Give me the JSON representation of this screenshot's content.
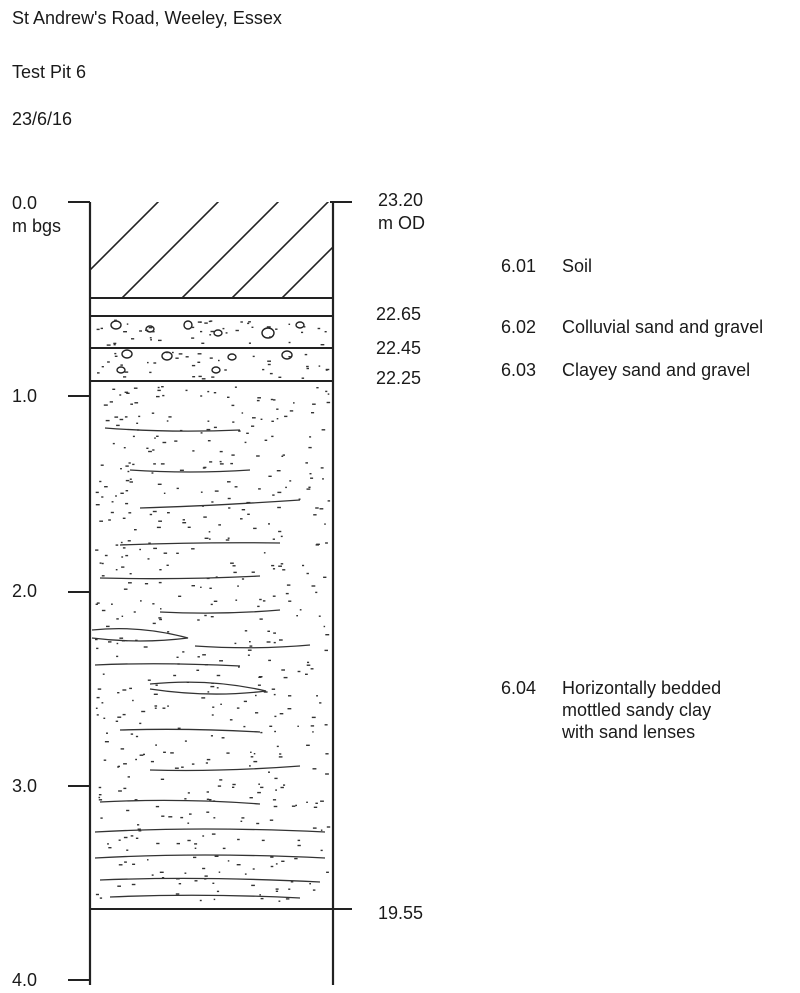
{
  "header": {
    "site": "St Andrew's Road, Weeley, Essex",
    "pit": "Test Pit 6",
    "date": "23/6/16"
  },
  "depth_axis": {
    "unit_label": "m bgs",
    "ticks": [
      "0.0",
      "1.0",
      "2.0",
      "3.0",
      "4.0"
    ]
  },
  "elevation": {
    "unit_label": "m OD",
    "levels": [
      "23.20",
      "22.65",
      "22.45",
      "22.25",
      "19.55"
    ]
  },
  "contexts": [
    {
      "code": "6.01",
      "description": "Soil"
    },
    {
      "code": "6.02",
      "description": "Colluvial sand and gravel"
    },
    {
      "code": "6.03",
      "description": "Clayey sand and gravel"
    },
    {
      "code": "6.04",
      "lines": [
        "Horizontally bedded",
        "mottled sandy clay",
        "with sand lenses"
      ]
    }
  ],
  "layer_depths_m": [
    0.0,
    0.55,
    0.75,
    0.95,
    3.65
  ],
  "pit_base_m": 3.65,
  "axis_max_m": 4.0
}
